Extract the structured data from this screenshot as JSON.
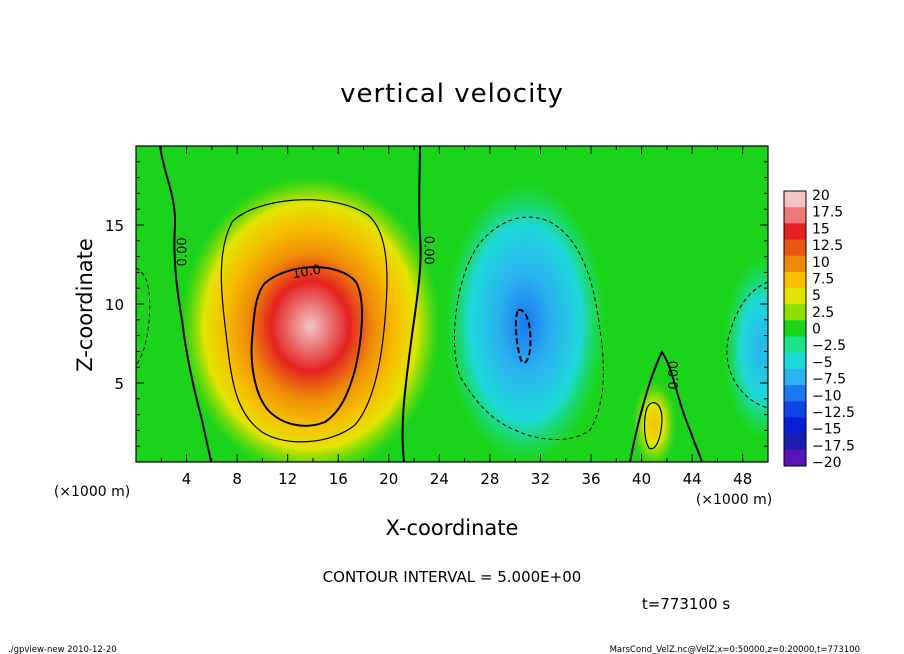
{
  "chart_data": {
    "type": "heatmap",
    "title": "vertical velocity",
    "xlabel": "X-coordinate",
    "ylabel": "Z-coordinate",
    "x_unit_label": "(×1000 m)",
    "y_unit_label": "(×1000 m)",
    "xlim": [
      0,
      50
    ],
    "ylim": [
      0,
      20
    ],
    "x_ticks": [
      4,
      8,
      12,
      16,
      20,
      24,
      28,
      32,
      36,
      40,
      44,
      48
    ],
    "y_ticks": [
      5,
      10,
      15
    ],
    "contour_interval_text": "CONTOUR INTERVAL = 5.000E+00",
    "contour_labels": [
      {
        "text": "0.00",
        "x": 3.7,
        "y": 13.3,
        "rotate": -90
      },
      {
        "text": "0.00",
        "x": 23.1,
        "y": 13.4,
        "rotate": 90
      },
      {
        "text": "10.0",
        "x": 13.5,
        "y": 12.0,
        "rotate": -10
      },
      {
        "text": "0.00",
        "x": 42.6,
        "y": 5.5,
        "rotate": -90
      }
    ],
    "colorbar": {
      "labels": [
        "20",
        "17.5",
        "15",
        "12.5",
        "10",
        "7.5",
        "5",
        "2.5",
        "0",
        "−2.5",
        "−5",
        "−7.5",
        "−10",
        "−12.5",
        "−15",
        "−17.5",
        "−20"
      ],
      "range": [
        -20,
        20
      ],
      "colors": [
        "#f4c4c4",
        "#ec7a7a",
        "#e52222",
        "#e85514",
        "#ef8a08",
        "#f6bf00",
        "#e2e400",
        "#8ede00",
        "#1cd31c",
        "#19e38a",
        "#1cd8d8",
        "#2bb3f0",
        "#1b78ee",
        "#1144e8",
        "#0a1ed6",
        "#1e1cb0",
        "#5a14b8"
      ]
    },
    "features": [
      {
        "x": 13.8,
        "z": 8.6,
        "value": 20
      },
      {
        "x": 30.8,
        "z": 8.8,
        "value": -8
      },
      {
        "x": 41.0,
        "z": 2.4,
        "value": 7
      },
      {
        "x": 49.5,
        "z": 7.2,
        "value": -6
      }
    ]
  },
  "time_label": "t=773100 s",
  "footer": {
    "left": "./gpview-new  2010-12-20",
    "right": "MarsCond_VelZ.nc@VelZ,x=0:50000,z=0:20000,t=773100"
  }
}
